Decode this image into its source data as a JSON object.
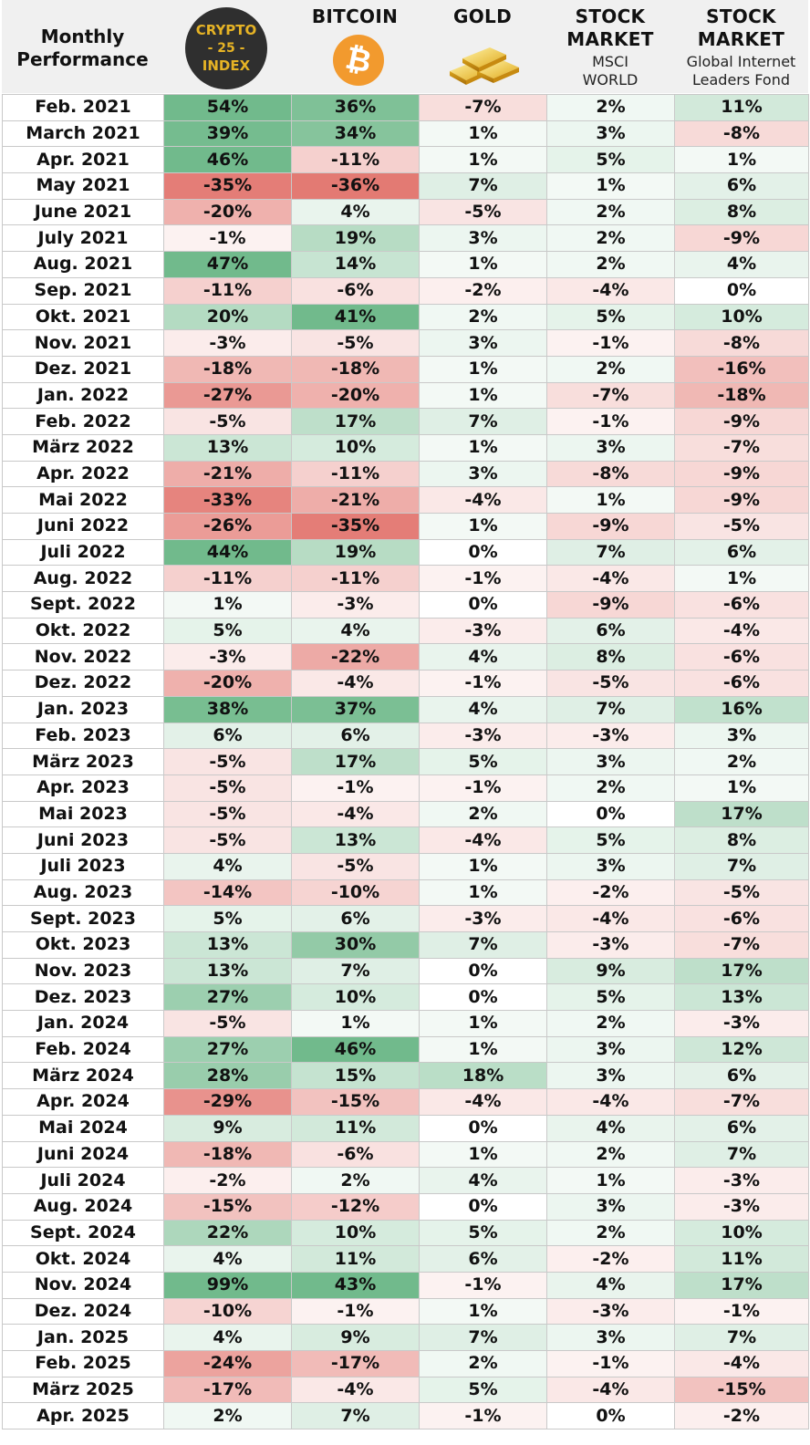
{
  "header": {
    "row_label": [
      "Monthly",
      "Performance"
    ],
    "columns": [
      {
        "title": "",
        "logo": "crypto-25-index-logo",
        "logo_text": [
          "CRYPTO",
          "- 25 -",
          "INDEX"
        ]
      },
      {
        "title": "BITCOIN",
        "logo": "bitcoin-icon",
        "logo_text": [
          "₿"
        ]
      },
      {
        "title": "GOLD",
        "logo": "gold-bars-icon"
      },
      {
        "title": "STOCK",
        "title2": "MARKET",
        "sub1": "MSCI",
        "sub2": "WORLD"
      },
      {
        "title": "STOCK",
        "title2": "MARKET",
        "sub1": "Global Internet",
        "sub2": "Leaders Fond"
      }
    ]
  },
  "colors": {
    "header_bg": "#f0f0f0",
    "positive": "#4ea96f",
    "negative": "#d9473e",
    "crypto_logo_bg": "#2f2f2f",
    "crypto_logo_text": "#e6b325",
    "bitcoin_orange": "#f29a2e",
    "gold": "#e8b923"
  },
  "chart_data": {
    "type": "table",
    "columns": [
      "Crypto 25 Index",
      "Bitcoin",
      "Gold",
      "Stock Market MSCI World",
      "Stock Market Global Internet Leaders Fond"
    ],
    "rows": [
      {
        "month": "Feb. 2021",
        "values": [
          "54%",
          "36%",
          "-7%",
          "2%",
          "11%"
        ]
      },
      {
        "month": "March 2021",
        "values": [
          "39%",
          "34%",
          "1%",
          "3%",
          "-8%"
        ]
      },
      {
        "month": "Apr. 2021",
        "values": [
          "46%",
          "-11%",
          "1%",
          "5%",
          "1%"
        ]
      },
      {
        "month": "May 2021",
        "values": [
          "-35%",
          "-36%",
          "7%",
          "1%",
          "6%"
        ]
      },
      {
        "month": "June 2021",
        "values": [
          "-20%",
          "4%",
          "-5%",
          "2%",
          "8%"
        ]
      },
      {
        "month": "July 2021",
        "values": [
          "-1%",
          "19%",
          "3%",
          "2%",
          "-9%"
        ]
      },
      {
        "month": "Aug. 2021",
        "values": [
          "47%",
          "14%",
          "1%",
          "2%",
          "4%"
        ]
      },
      {
        "month": "Sep. 2021",
        "values": [
          "-11%",
          "-6%",
          "-2%",
          "-4%",
          "0%"
        ]
      },
      {
        "month": "Okt. 2021",
        "values": [
          "20%",
          "41%",
          "2%",
          "5%",
          "10%"
        ]
      },
      {
        "month": "Nov. 2021",
        "values": [
          "-3%",
          "-5%",
          "3%",
          "-1%",
          "-8%"
        ]
      },
      {
        "month": "Dez. 2021",
        "values": [
          "-18%",
          "-18%",
          "1%",
          "2%",
          "-16%"
        ]
      },
      {
        "month": "Jan. 2022",
        "values": [
          "-27%",
          "-20%",
          "1%",
          "-7%",
          "-18%"
        ]
      },
      {
        "month": "Feb. 2022",
        "values": [
          "-5%",
          "17%",
          "7%",
          "-1%",
          "-9%"
        ]
      },
      {
        "month": "März 2022",
        "values": [
          "13%",
          "10%",
          "1%",
          "3%",
          "-7%"
        ]
      },
      {
        "month": "Apr. 2022",
        "values": [
          "-21%",
          "-11%",
          "3%",
          "-8%",
          "-9%"
        ]
      },
      {
        "month": "Mai 2022",
        "values": [
          "-33%",
          "-21%",
          "-4%",
          "1%",
          "-9%"
        ]
      },
      {
        "month": "Juni 2022",
        "values": [
          "-26%",
          "-35%",
          "1%",
          "-9%",
          "-5%"
        ]
      },
      {
        "month": "Juli 2022",
        "values": [
          "44%",
          "19%",
          "0%",
          "7%",
          "6%"
        ]
      },
      {
        "month": "Aug. 2022",
        "values": [
          "-11%",
          "-11%",
          "-1%",
          "-4%",
          "1%"
        ]
      },
      {
        "month": "Sept. 2022",
        "values": [
          "1%",
          "-3%",
          "0%",
          "-9%",
          "-6%"
        ]
      },
      {
        "month": "Okt. 2022",
        "values": [
          "5%",
          "4%",
          "-3%",
          "6%",
          "-4%"
        ]
      },
      {
        "month": "Nov. 2022",
        "values": [
          "-3%",
          "-22%",
          "4%",
          "8%",
          "-6%"
        ]
      },
      {
        "month": "Dez. 2022",
        "values": [
          "-20%",
          "-4%",
          "-1%",
          "-5%",
          "-6%"
        ]
      },
      {
        "month": "Jan. 2023",
        "values": [
          "38%",
          "37%",
          "4%",
          "7%",
          "16%"
        ]
      },
      {
        "month": "Feb. 2023",
        "values": [
          "6%",
          "6%",
          "-3%",
          "-3%",
          "3%"
        ]
      },
      {
        "month": "März 2023",
        "values": [
          "-5%",
          "17%",
          "5%",
          "3%",
          "2%"
        ]
      },
      {
        "month": "Apr. 2023",
        "values": [
          "-5%",
          "-1%",
          "-1%",
          "2%",
          "1%"
        ]
      },
      {
        "month": "Mai 2023",
        "values": [
          "-5%",
          "-4%",
          "2%",
          "0%",
          "17%"
        ]
      },
      {
        "month": "Juni 2023",
        "values": [
          "-5%",
          "13%",
          "-4%",
          "5%",
          "8%"
        ]
      },
      {
        "month": "Juli 2023",
        "values": [
          "4%",
          "-5%",
          "1%",
          "3%",
          "7%"
        ]
      },
      {
        "month": "Aug. 2023",
        "values": [
          "-14%",
          "-10%",
          "1%",
          "-2%",
          "-5%"
        ]
      },
      {
        "month": "Sept. 2023",
        "values": [
          "5%",
          "6%",
          "-3%",
          "-4%",
          "-6%"
        ]
      },
      {
        "month": "Okt. 2023",
        "values": [
          "13%",
          "30%",
          "7%",
          "-3%",
          "-7%"
        ]
      },
      {
        "month": "Nov. 2023",
        "values": [
          "13%",
          "7%",
          "0%",
          "9%",
          "17%"
        ]
      },
      {
        "month": "Dez. 2023",
        "values": [
          "27%",
          "10%",
          "0%",
          "5%",
          "13%"
        ]
      },
      {
        "month": "Jan. 2024",
        "values": [
          "-5%",
          "1%",
          "1%",
          "2%",
          "-3%"
        ]
      },
      {
        "month": "Feb. 2024",
        "values": [
          "27%",
          "46%",
          "1%",
          "3%",
          "12%"
        ]
      },
      {
        "month": "März 2024",
        "values": [
          "28%",
          "15%",
          "18%",
          "3%",
          "6%"
        ]
      },
      {
        "month": "Apr. 2024",
        "values": [
          "-29%",
          "-15%",
          "-4%",
          "-4%",
          "-7%"
        ]
      },
      {
        "month": "Mai 2024",
        "values": [
          "9%",
          "11%",
          "0%",
          "4%",
          "6%"
        ]
      },
      {
        "month": "Juni 2024",
        "values": [
          "-18%",
          "-6%",
          "1%",
          "2%",
          "7%"
        ]
      },
      {
        "month": "Juli 2024",
        "values": [
          "-2%",
          "2%",
          "4%",
          "1%",
          "-3%"
        ]
      },
      {
        "month": "Aug. 2024",
        "values": [
          "-15%",
          "-12%",
          "0%",
          "3%",
          "-3%"
        ]
      },
      {
        "month": "Sept. 2024",
        "values": [
          "22%",
          "10%",
          "5%",
          "2%",
          "10%"
        ]
      },
      {
        "month": "Okt. 2024",
        "values": [
          "4%",
          "11%",
          "6%",
          "-2%",
          "11%"
        ]
      },
      {
        "month": "Nov. 2024",
        "values": [
          "99%",
          "43%",
          "-1%",
          "4%",
          "17%"
        ]
      },
      {
        "month": "Dez. 2024",
        "values": [
          "-10%",
          "-1%",
          "1%",
          "-3%",
          "-1%"
        ]
      },
      {
        "month": "Jan. 2025",
        "values": [
          "4%",
          "9%",
          "7%",
          "3%",
          "7%"
        ]
      },
      {
        "month": "Feb. 2025",
        "values": [
          "-24%",
          "-17%",
          "2%",
          "-1%",
          "-4%"
        ]
      },
      {
        "month": "März 2025",
        "values": [
          "-17%",
          "-4%",
          "5%",
          "-4%",
          "-15%"
        ]
      },
      {
        "month": "Apr. 2025",
        "values": [
          "2%",
          "7%",
          "-1%",
          "0%",
          "-2%"
        ]
      }
    ]
  }
}
